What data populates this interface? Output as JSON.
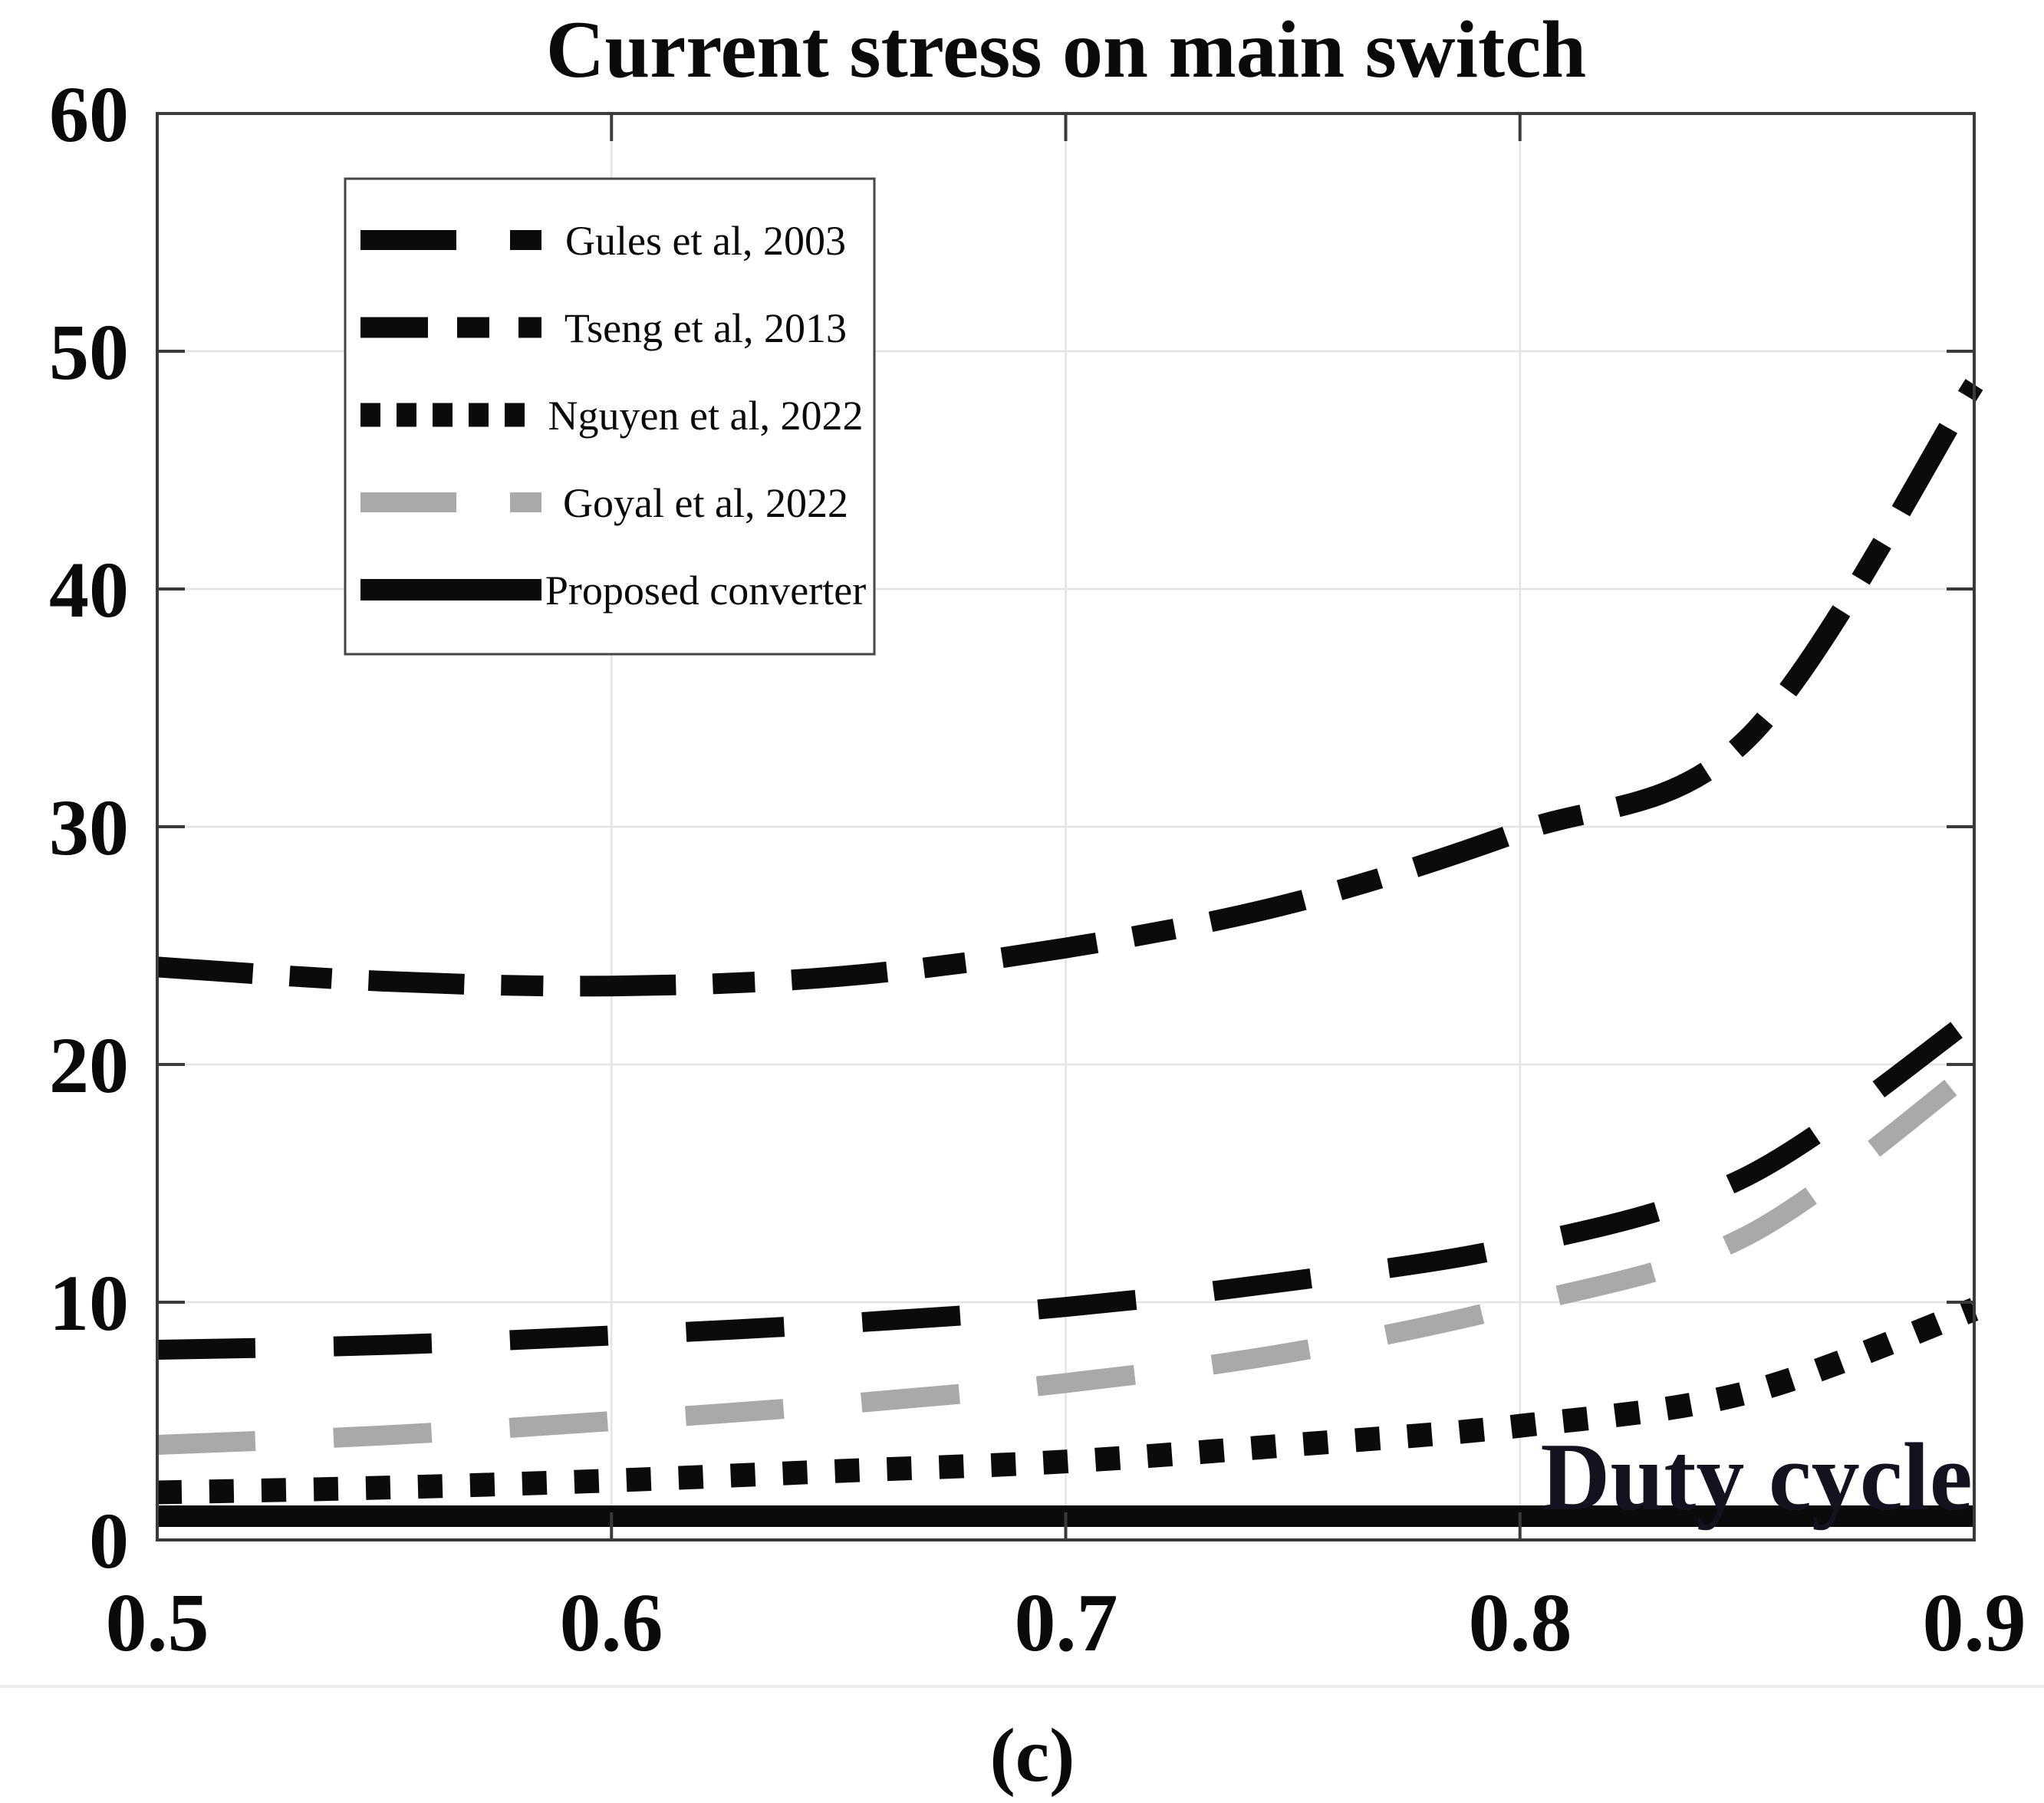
{
  "figure": {
    "title": "Current stress on main switch",
    "inner_xlabel": "Duty cycle",
    "caption": "(c)"
  },
  "axes": {
    "x_tick_labels": [
      "0.5",
      "0.6",
      "0.7",
      "0.8",
      "0.9"
    ],
    "y_tick_labels": [
      "60",
      "50",
      "40",
      "30",
      "20",
      "10",
      "0"
    ]
  },
  "legend": {
    "items": [
      {
        "label": "Gules et al, 2003",
        "style": "dashed",
        "color": "#0b0b0b"
      },
      {
        "label": "Tseng et al, 2013",
        "style": "dashdot",
        "color": "#0b0b0b"
      },
      {
        "label": "Nguyen et al, 2022",
        "style": "dotted",
        "color": "#0b0b0b"
      },
      {
        "label": "Goyal et al, 2022",
        "style": "dashed",
        "color": "#a9a9a9"
      },
      {
        "label": "Proposed converter",
        "style": "solid",
        "color": "#0b0b0b"
      }
    ]
  },
  "colors": {
    "black": "#0b0b0b",
    "gray": "#a9a9a9",
    "grid": "#e4e4e4",
    "frame": "#3a3a3a",
    "duty_cycle_label": "#13131f",
    "separator": "#ececec"
  },
  "chart_data": {
    "type": "line",
    "title": "Current stress on main switch",
    "xlabel": "Duty cycle",
    "ylabel": "",
    "xlim": [
      0.5,
      0.9
    ],
    "ylim": [
      0,
      60
    ],
    "grid": true,
    "legend_position": "upper-left",
    "x": [
      0.5,
      0.55,
      0.6,
      0.65,
      0.7,
      0.75,
      0.8,
      0.85,
      0.9
    ],
    "series": [
      {
        "name": "Gules et al, 2003",
        "style": "dashed",
        "color": "#0b0b0b",
        "values": [
          8.0,
          8.2,
          8.6,
          9.1,
          9.8,
          10.9,
          12.4,
          15.3,
          22.0
        ]
      },
      {
        "name": "Tseng et al, 2013",
        "style": "dashdot",
        "color": "#0b0b0b",
        "values": [
          24.1,
          23.5,
          23.3,
          23.7,
          24.9,
          26.8,
          29.8,
          33.7,
          48.6
        ]
      },
      {
        "name": "Nguyen et al, 2022",
        "style": "dotted",
        "color": "#0b0b0b",
        "values": [
          2.0,
          2.2,
          2.5,
          2.9,
          3.3,
          4.0,
          4.8,
          6.2,
          9.7
        ]
      },
      {
        "name": "Goyal et al, 2022",
        "style": "dashed",
        "color": "#a9a9a9",
        "values": [
          4.0,
          4.4,
          5.0,
          5.7,
          6.6,
          7.9,
          9.9,
          12.8,
          19.8
        ]
      },
      {
        "name": "Proposed converter",
        "style": "solid",
        "color": "#0b0b0b",
        "values": [
          1.0,
          1.0,
          1.0,
          1.0,
          1.0,
          1.0,
          1.0,
          1.0,
          1.0
        ]
      }
    ]
  }
}
